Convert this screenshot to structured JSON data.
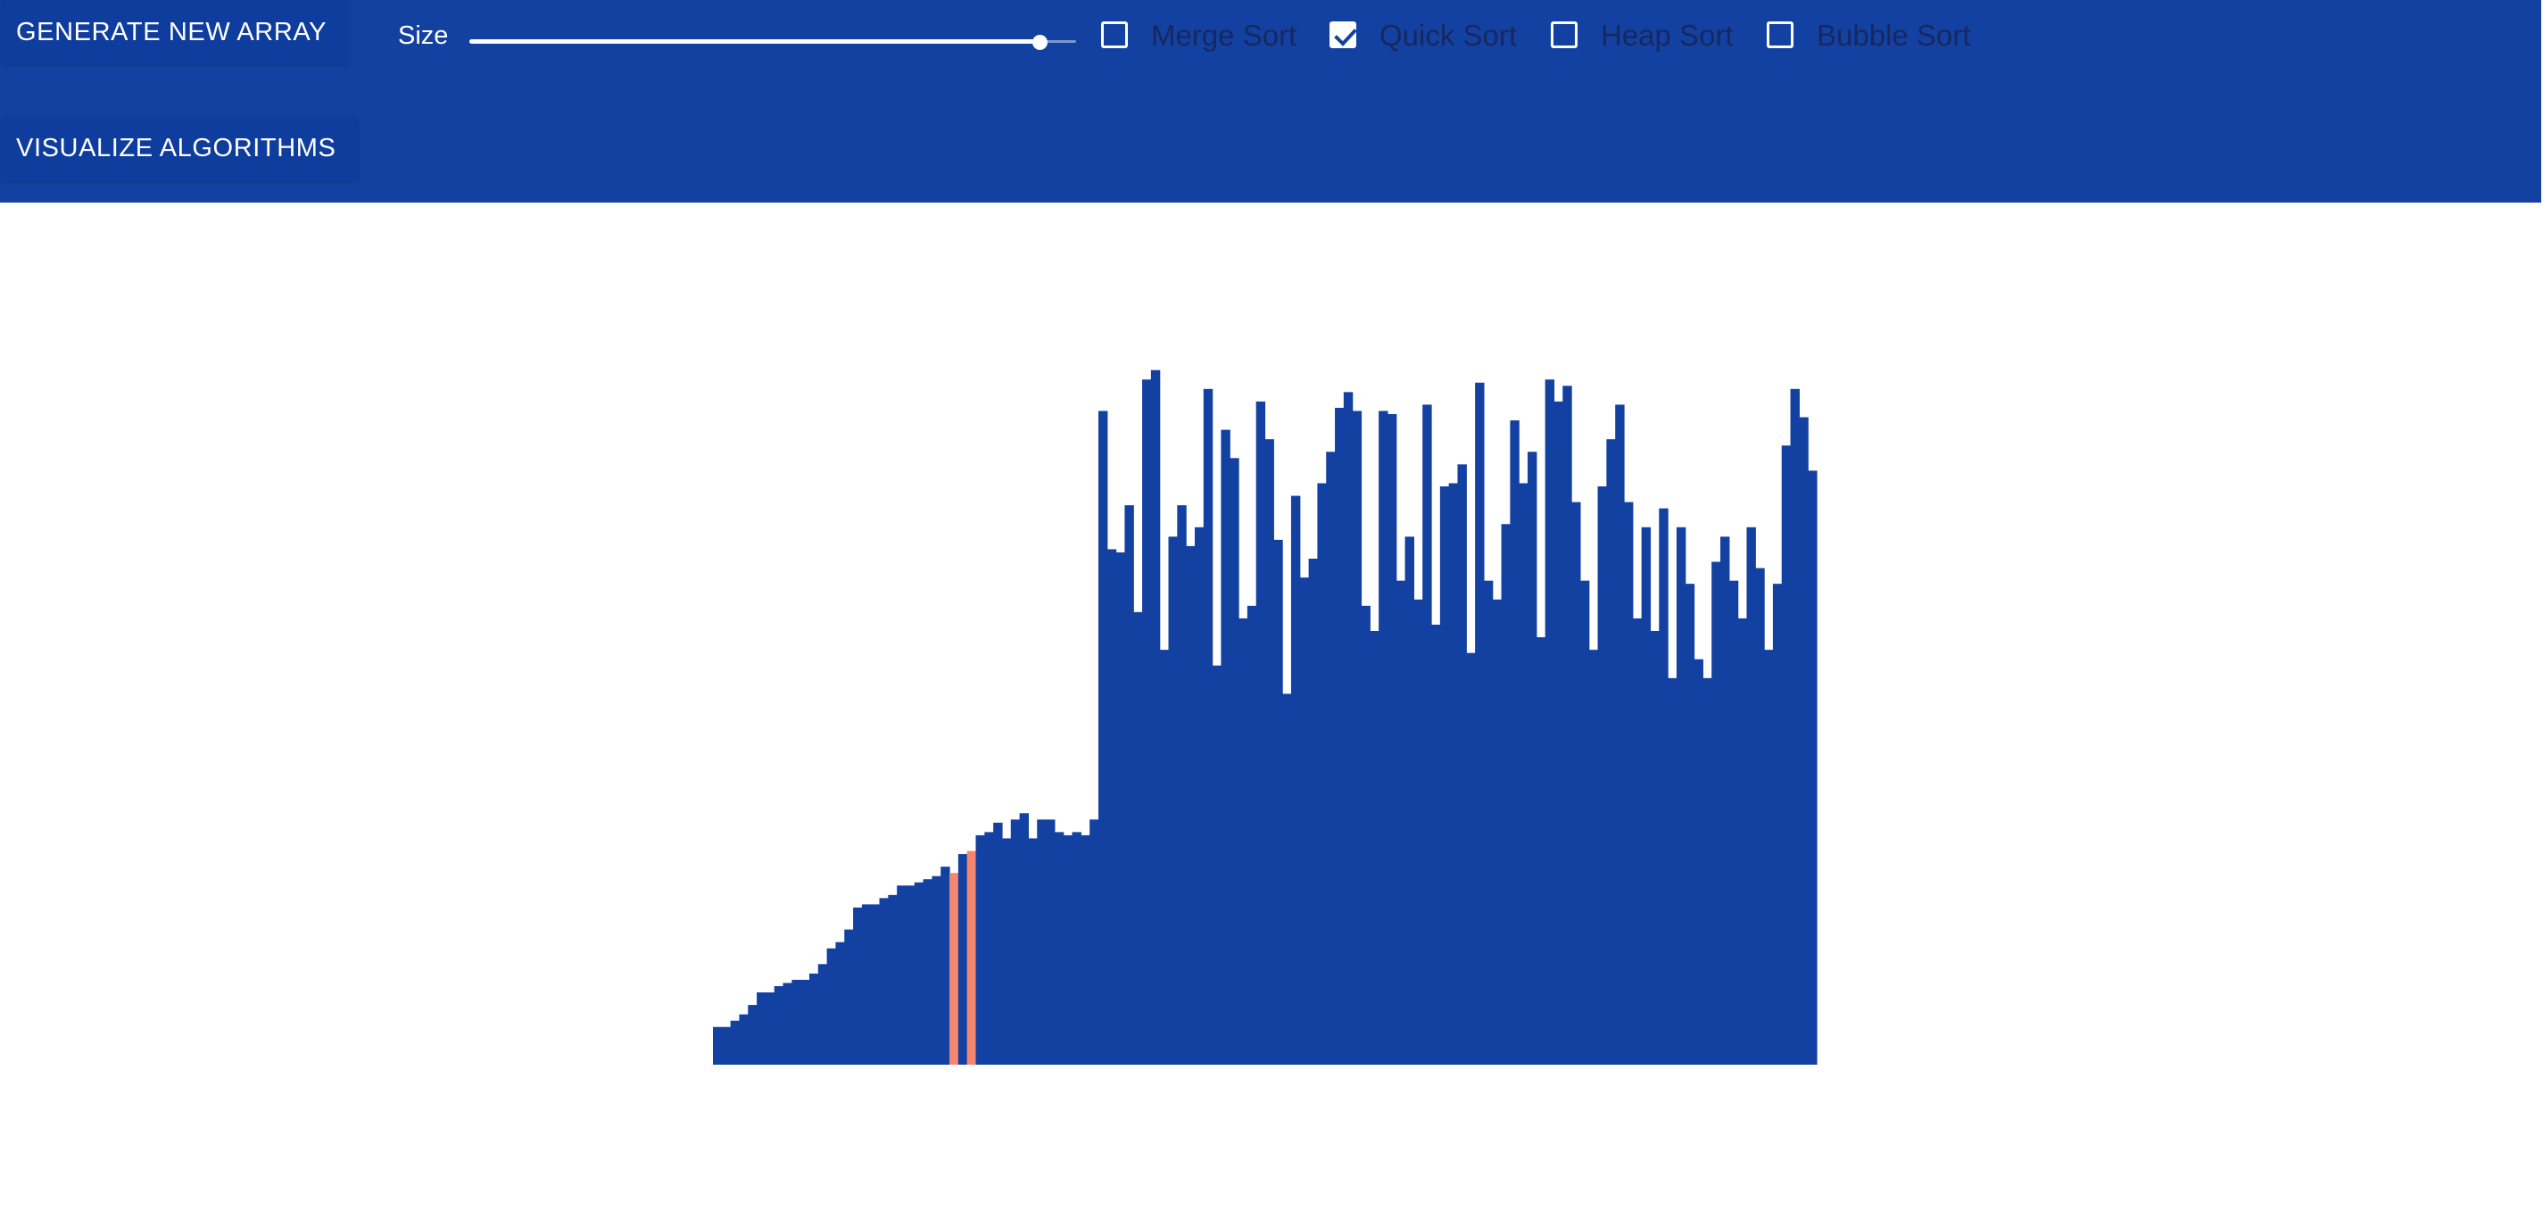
{
  "toolbar": {
    "generate_label": "GENERATE NEW ARRAY",
    "visualize_label": "VISUALIZE ALGORITHMS",
    "size_label": "Size",
    "size_slider_fraction": 0.94,
    "algorithms": [
      {
        "label": "Merge Sort",
        "checked": false
      },
      {
        "label": "Quick Sort",
        "checked": true
      },
      {
        "label": "Heap Sort",
        "checked": false
      },
      {
        "label": "Bubble Sort",
        "checked": false
      }
    ]
  },
  "colors": {
    "toolbar_bg": "#1341a2",
    "bar": "#1341a2",
    "bar_compare": "#f4866f",
    "label_text": "#17285f"
  },
  "chart_data": {
    "type": "bar",
    "values": [
      12,
      12,
      14,
      16,
      19,
      23,
      23,
      25,
      26,
      27,
      27,
      29,
      32,
      37,
      39,
      43,
      50,
      51,
      51,
      53,
      54,
      57,
      57,
      58,
      59,
      60,
      63,
      61,
      67,
      68,
      73,
      74,
      77,
      72,
      78,
      80,
      72,
      78,
      78,
      74,
      73,
      74,
      73,
      78,
      208,
      164,
      163,
      178,
      144,
      218,
      221,
      132,
      168,
      178,
      165,
      171,
      215,
      127,
      202,
      193,
      142,
      146,
      211,
      199,
      167,
      118,
      181,
      155,
      161,
      185,
      195,
      209,
      214,
      208,
      146,
      138,
      208,
      207,
      154,
      168,
      148,
      210,
      140,
      184,
      185,
      191,
      131,
      217,
      154,
      148,
      172,
      205,
      185,
      195,
      136,
      218,
      211,
      216,
      179,
      154,
      132,
      184,
      199,
      210,
      179,
      142,
      171,
      138,
      177,
      123,
      171,
      153,
      129,
      123,
      160,
      168,
      154,
      142,
      171,
      158,
      132,
      153,
      197,
      215,
      206,
      189
    ],
    "compare_indices": [
      27,
      29
    ],
    "ylim": [
      0,
      230
    ]
  }
}
